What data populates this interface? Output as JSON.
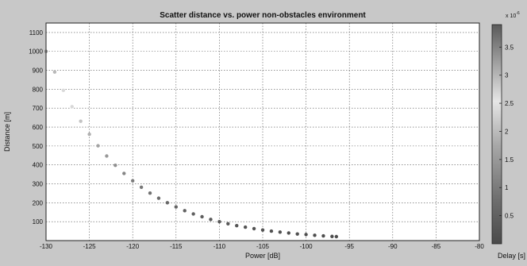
{
  "chart_data": {
    "type": "scatter",
    "title": "Scatter distance vs. power non-obstacles environment",
    "xlabel": "Power [dB]",
    "ylabel": "Distance [m]",
    "xlim": [
      -130,
      -80
    ],
    "ylim": [
      0,
      1150
    ],
    "xticks": [
      -130,
      -125,
      -120,
      -115,
      -110,
      -105,
      -100,
      -95,
      -90,
      -85,
      -80
    ],
    "yticks": [
      100,
      200,
      300,
      400,
      500,
      600,
      700,
      800,
      900,
      1000,
      1100
    ],
    "grid": true,
    "colorbar": {
      "label": "Delay [s]",
      "exponent_label": "x 10",
      "exponent_power": "-6",
      "ticks": [
        0.5,
        1,
        1.5,
        2,
        2.5,
        3,
        3.5
      ],
      "range": [
        0,
        3.9
      ],
      "colormap": "gray"
    },
    "series": [
      {
        "points": [
          {
            "x": -130,
            "y": 1000,
            "delay": 3.33
          },
          {
            "x": -129,
            "y": 891,
            "delay": 2.97
          },
          {
            "x": -128,
            "y": 794,
            "delay": 2.65
          },
          {
            "x": -127,
            "y": 708,
            "delay": 2.36
          },
          {
            "x": -126,
            "y": 631,
            "delay": 2.1
          },
          {
            "x": -125,
            "y": 562,
            "delay": 1.87
          },
          {
            "x": -124,
            "y": 501,
            "delay": 1.67
          },
          {
            "x": -123,
            "y": 447,
            "delay": 1.49
          },
          {
            "x": -122,
            "y": 398,
            "delay": 1.33
          },
          {
            "x": -121,
            "y": 355,
            "delay": 1.18
          },
          {
            "x": -120,
            "y": 316,
            "delay": 1.05
          },
          {
            "x": -119,
            "y": 282,
            "delay": 0.94
          },
          {
            "x": -118,
            "y": 251,
            "delay": 0.84
          },
          {
            "x": -117,
            "y": 224,
            "delay": 0.75
          },
          {
            "x": -116,
            "y": 200,
            "delay": 0.67
          },
          {
            "x": -115,
            "y": 178,
            "delay": 0.59
          },
          {
            "x": -114,
            "y": 158,
            "delay": 0.53
          },
          {
            "x": -113,
            "y": 141,
            "delay": 0.47
          },
          {
            "x": -112,
            "y": 126,
            "delay": 0.42
          },
          {
            "x": -111,
            "y": 112,
            "delay": 0.37
          },
          {
            "x": -110,
            "y": 100,
            "delay": 0.33
          },
          {
            "x": -109,
            "y": 89,
            "delay": 0.3
          },
          {
            "x": -108,
            "y": 79,
            "delay": 0.26
          },
          {
            "x": -107,
            "y": 71,
            "delay": 0.24
          },
          {
            "x": -106,
            "y": 63,
            "delay": 0.21
          },
          {
            "x": -105,
            "y": 56,
            "delay": 0.19
          },
          {
            "x": -104,
            "y": 50,
            "delay": 0.17
          },
          {
            "x": -103,
            "y": 45,
            "delay": 0.15
          },
          {
            "x": -102,
            "y": 40,
            "delay": 0.13
          },
          {
            "x": -101,
            "y": 35,
            "delay": 0.12
          },
          {
            "x": -100,
            "y": 32,
            "delay": 0.11
          },
          {
            "x": -99,
            "y": 28,
            "delay": 0.09
          },
          {
            "x": -98,
            "y": 25,
            "delay": 0.08
          },
          {
            "x": -97,
            "y": 22,
            "delay": 0.07
          },
          {
            "x": -96.5,
            "y": 21,
            "delay": 0.07
          }
        ]
      }
    ]
  }
}
